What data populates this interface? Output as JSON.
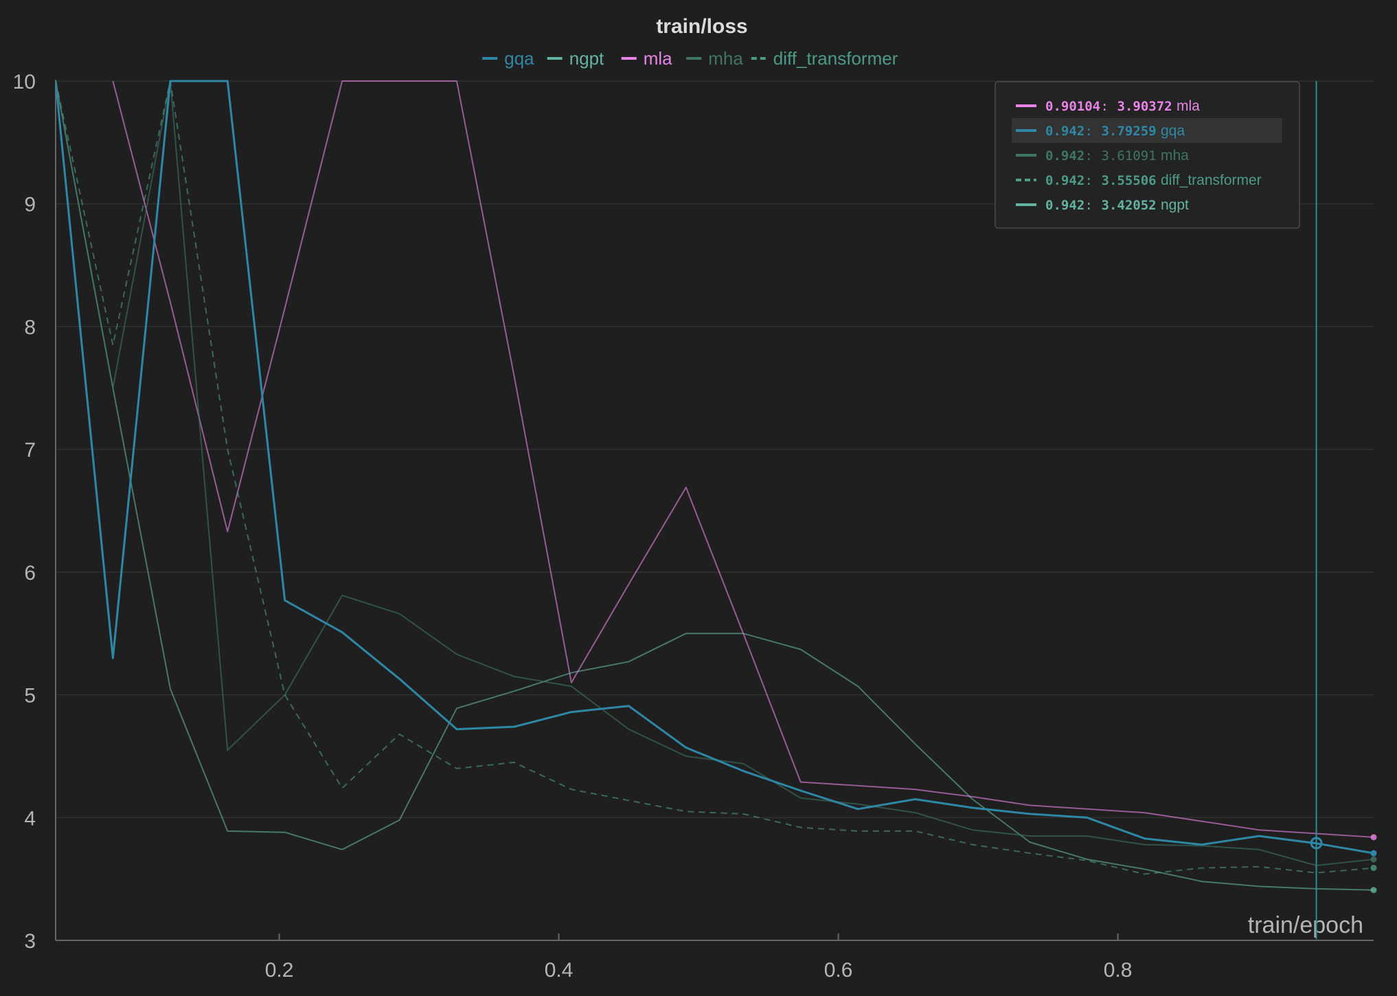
{
  "colors": {
    "gqa": "#2f87a6",
    "ngpt": "#62b3a1",
    "mla": "#e883e8",
    "mha": "#3e7565",
    "diff_transformer": "#4c9b88",
    "background": "#1f1f1f",
    "grid": "#333333",
    "axis": "#666666",
    "tick_text": "#b5b5b5",
    "cursor": "#2a8e9a"
  },
  "chart_data": {
    "type": "line",
    "title": "train/loss",
    "xlabel": "train/epoch",
    "ylabel": "",
    "xlim": [
      0.04,
      0.983
    ],
    "ylim": [
      3,
      10
    ],
    "x_ticks": [
      "0.2",
      "0.4",
      "0.6",
      "0.8"
    ],
    "y_ticks": [
      "3",
      "4",
      "5",
      "6",
      "7",
      "8",
      "9",
      "10"
    ],
    "grid": true,
    "legend": [
      "gqa",
      "ngpt",
      "mla",
      "mha",
      "diff_transformer"
    ],
    "legend_placement": "top-center",
    "series": [
      {
        "name": "gqa",
        "style": "solid",
        "emphasis": "high",
        "x": [
          0.04,
          0.081,
          0.122,
          0.163,
          0.204,
          0.245,
          0.286,
          0.327,
          0.368,
          0.409,
          0.45,
          0.491,
          0.532,
          0.573,
          0.614,
          0.655,
          0.696,
          0.737,
          0.778,
          0.819,
          0.86,
          0.901,
          0.942,
          0.983
        ],
        "y": [
          10,
          5.3,
          10,
          10,
          5.77,
          5.51,
          5.13,
          4.72,
          4.74,
          4.86,
          4.91,
          4.57,
          4.38,
          4.22,
          4.07,
          4.15,
          4.08,
          4.03,
          4.0,
          3.83,
          3.78,
          3.85,
          3.79,
          3.71
        ]
      },
      {
        "name": "ngpt",
        "style": "solid",
        "emphasis": "low",
        "x": [
          0.04,
          0.081,
          0.122,
          0.163,
          0.204,
          0.245,
          0.286,
          0.327,
          0.368,
          0.409,
          0.45,
          0.491,
          0.532,
          0.573,
          0.614,
          0.655,
          0.696,
          0.737,
          0.778,
          0.819,
          0.86,
          0.901,
          0.942,
          0.983
        ],
        "y": [
          10,
          7.5,
          5.05,
          3.89,
          3.88,
          3.74,
          3.98,
          4.89,
          5.03,
          5.18,
          5.27,
          5.5,
          5.5,
          5.37,
          5.07,
          4.6,
          4.15,
          3.8,
          3.66,
          3.58,
          3.48,
          3.44,
          3.42,
          3.41
        ]
      },
      {
        "name": "mla",
        "style": "solid",
        "emphasis": "low",
        "x": [
          0.081,
          0.122,
          0.163,
          0.204,
          0.245,
          0.286,
          0.327,
          0.368,
          0.409,
          0.45,
          0.491,
          0.532,
          0.573,
          0.614,
          0.655,
          0.696,
          0.737,
          0.778,
          0.819,
          0.86,
          0.901,
          0.942,
          0.983
        ],
        "y": [
          10,
          8.2,
          6.33,
          8.15,
          10,
          10,
          10,
          7.6,
          5.1,
          5.9,
          6.69,
          5.5,
          4.29,
          4.26,
          4.23,
          4.17,
          4.1,
          4.07,
          4.04,
          3.97,
          3.9,
          3.87,
          3.84
        ]
      },
      {
        "name": "mha",
        "style": "solid",
        "emphasis": "low",
        "x": [
          0.04,
          0.081,
          0.122,
          0.163,
          0.204,
          0.245,
          0.286,
          0.327,
          0.368,
          0.409,
          0.45,
          0.491,
          0.532,
          0.573,
          0.614,
          0.655,
          0.696,
          0.737,
          0.778,
          0.819,
          0.86,
          0.901,
          0.942,
          0.983
        ],
        "y": [
          10,
          7.5,
          10,
          4.55,
          5.0,
          5.81,
          5.66,
          5.33,
          5.15,
          5.07,
          4.72,
          4.5,
          4.44,
          4.16,
          4.11,
          4.04,
          3.9,
          3.85,
          3.85,
          3.78,
          3.77,
          3.74,
          3.61,
          3.66
        ]
      },
      {
        "name": "diff_transformer",
        "style": "dashed",
        "emphasis": "low",
        "x": [
          0.04,
          0.081,
          0.122,
          0.163,
          0.204,
          0.245,
          0.286,
          0.327,
          0.368,
          0.409,
          0.45,
          0.491,
          0.532,
          0.573,
          0.614,
          0.655,
          0.696,
          0.737,
          0.778,
          0.819,
          0.86,
          0.901,
          0.942,
          0.983
        ],
        "y": [
          10,
          7.85,
          10,
          7.0,
          5.0,
          4.24,
          4.68,
          4.4,
          4.45,
          4.23,
          4.14,
          4.05,
          4.03,
          3.92,
          3.89,
          3.89,
          3.78,
          3.71,
          3.65,
          3.54,
          3.59,
          3.6,
          3.55,
          3.59
        ]
      }
    ],
    "cursor": {
      "x": 0.942,
      "marked_series": "gqa",
      "marked_value": 3.79259
    },
    "tooltip": {
      "rows": [
        {
          "series": "mla",
          "x_label": "0.90104",
          "value_label": "3.90372",
          "name": "mla",
          "style": "solid",
          "bold": true,
          "highlight": false
        },
        {
          "series": "gqa",
          "x_label": "0.942",
          "value_label": "3.79259",
          "name": "gqa",
          "style": "solid",
          "bold": true,
          "highlight": true
        },
        {
          "series": "mha",
          "x_label": "0.942",
          "value_label": "3.61091",
          "name": "mha",
          "style": "solid",
          "bold": false,
          "highlight": false
        },
        {
          "series": "diff_transformer",
          "x_label": "0.942",
          "value_label": "3.55506",
          "name": "diff_transformer",
          "style": "dashed",
          "bold": true,
          "highlight": false
        },
        {
          "series": "ngpt",
          "x_label": "0.942",
          "value_label": "3.42052",
          "name": "ngpt",
          "style": "solid",
          "bold": true,
          "highlight": false
        }
      ]
    }
  }
}
